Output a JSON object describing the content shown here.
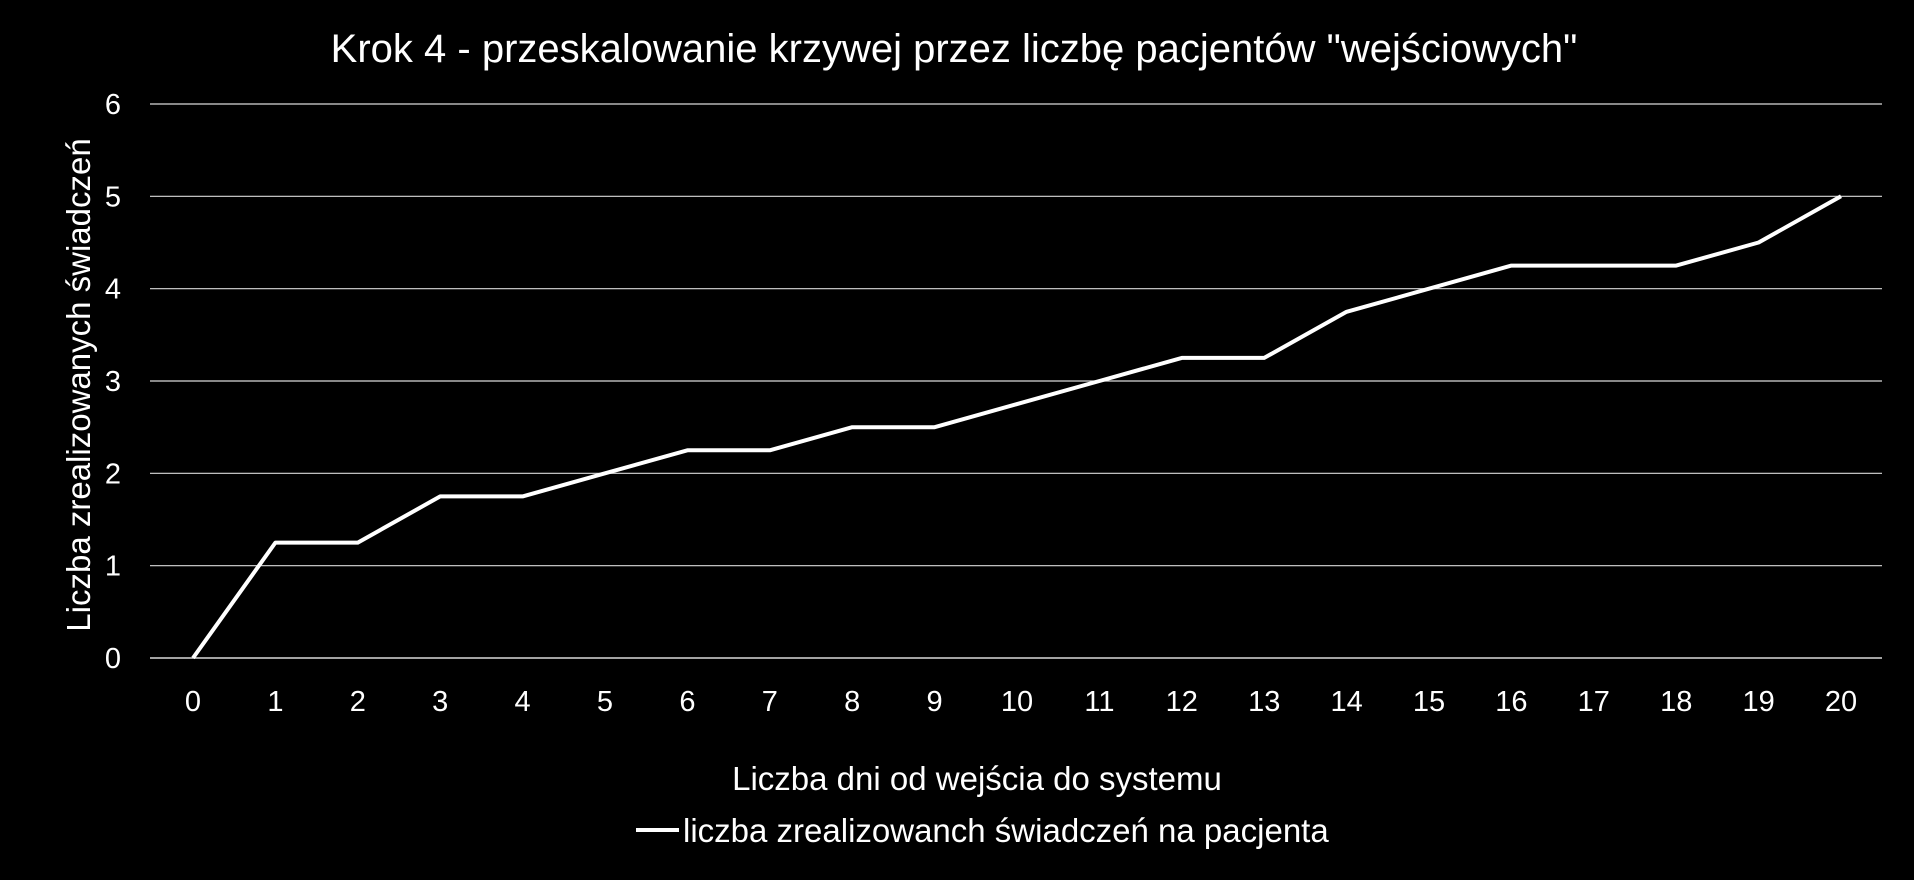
{
  "colors": {
    "background": "#000000",
    "line": "#ffffff",
    "grid": "#d9d9d9",
    "text": "#ffffff"
  },
  "chart_data": {
    "type": "line",
    "title": "Krok 4 - przeskalowanie krzywej przez liczbę pacjentów \"wejściowych\"",
    "xlabel": "Liczba dni od wejścia do systemu",
    "ylabel": "Liczba zrealizowanych świadczeń",
    "categories": [
      "0",
      "1",
      "2",
      "3",
      "4",
      "5",
      "6",
      "7",
      "8",
      "9",
      "10",
      "11",
      "12",
      "13",
      "14",
      "15",
      "16",
      "17",
      "18",
      "19",
      "20"
    ],
    "y_ticks": [
      "0",
      "1",
      "2",
      "3",
      "4",
      "5",
      "6"
    ],
    "ylim": [
      0,
      6
    ],
    "grid": "horizontal",
    "legend_position": "bottom",
    "series": [
      {
        "name": "liczba zrealizowanch świadczeń na pacjenta",
        "color": "#ffffff",
        "values": [
          0,
          1.25,
          1.25,
          1.75,
          1.75,
          2,
          2.25,
          2.25,
          2.5,
          2.5,
          2.75,
          3,
          3.25,
          3.25,
          3.75,
          4,
          4.25,
          4.25,
          4.25,
          4.5,
          5
        ]
      }
    ]
  }
}
